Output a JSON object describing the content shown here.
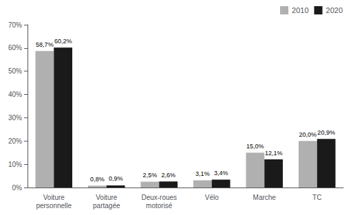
{
  "chart_data": {
    "type": "bar",
    "categories": [
      "Voiture\npersonnelle",
      "Voiture\npartagée",
      "Deux-roues\nmotorisé",
      "Vélo",
      "Marche",
      "TC"
    ],
    "series": [
      {
        "name": "2010",
        "color": "#b0b0b0",
        "values": [
          58.7,
          0.8,
          2.5,
          3.1,
          15.0,
          20.0
        ],
        "value_labels": [
          "58,7%",
          "0,8%",
          "2,5%",
          "3,1%",
          "15,0%",
          "20,0%"
        ]
      },
      {
        "name": "2020",
        "color": "#1a1a1a",
        "values": [
          60.2,
          0.9,
          2.6,
          3.4,
          12.1,
          20.9
        ],
        "value_labels": [
          "60,2%",
          "0,9%",
          "2,6%",
          "3,4%",
          "12,1%",
          "20,9%"
        ]
      }
    ],
    "ylim": [
      0,
      70
    ],
    "yticks": [
      {
        "value": 0,
        "label": "0%"
      },
      {
        "value": 10,
        "label": "10%"
      },
      {
        "value": 20,
        "label": "20%"
      },
      {
        "value": 30,
        "label": "30%"
      },
      {
        "value": 40,
        "label": "40%"
      },
      {
        "value": 50,
        "label": "50%"
      },
      {
        "value": 60,
        "label": "60%"
      },
      {
        "value": 70,
        "label": "70%"
      }
    ],
    "grid": false,
    "legend": "upper right",
    "data_labels": true
  }
}
